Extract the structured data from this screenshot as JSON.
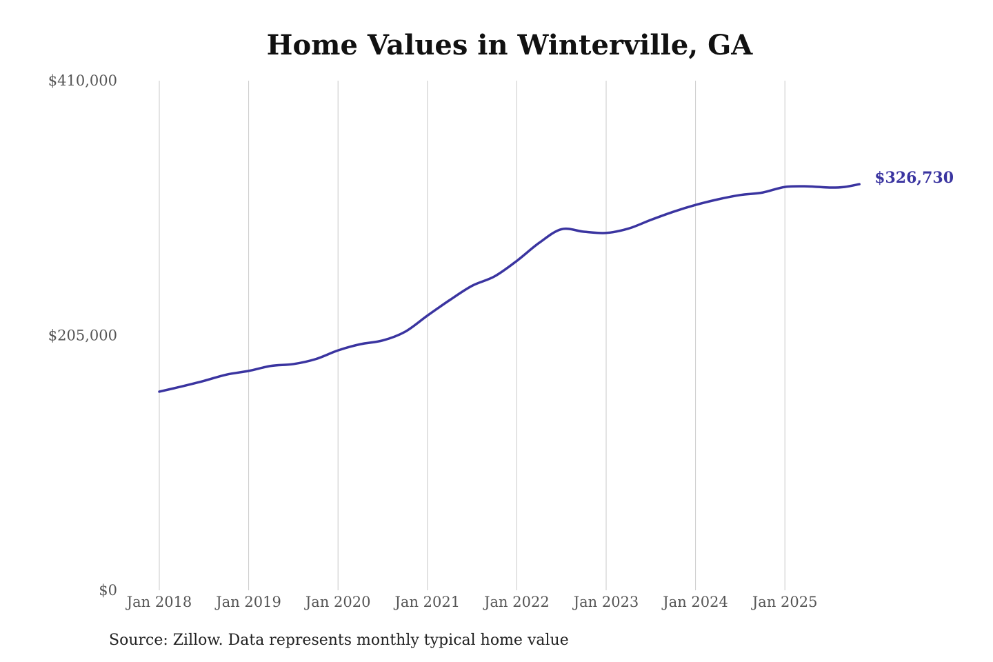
{
  "chart_data": {
    "type": "line",
    "title": "Home Values in Winterville, GA",
    "source": "Source: Zillow. Data represents monthly typical home value",
    "xlabel": "",
    "ylabel": "",
    "ylim": [
      0,
      410000
    ],
    "y_ticks": [
      0,
      205000,
      410000
    ],
    "y_tick_labels": [
      "$0",
      "$205,000",
      "$410,000"
    ],
    "x_ticks": [
      "2018-01",
      "2019-01",
      "2020-01",
      "2021-01",
      "2022-01",
      "2023-01",
      "2024-01",
      "2025-01"
    ],
    "x_tick_labels": [
      "Jan 2018",
      "Jan 2019",
      "Jan 2020",
      "Jan 2021",
      "Jan 2022",
      "Jan 2023",
      "Jan 2024",
      "Jan 2025"
    ],
    "grid": "vertical",
    "line_color": "#3a34a0",
    "end_label": "$326,730",
    "points": [
      [
        "2018-01",
        159800
      ],
      [
        "2018-04",
        164000
      ],
      [
        "2018-07",
        168500
      ],
      [
        "2018-10",
        173500
      ],
      [
        "2019-01",
        176500
      ],
      [
        "2019-04",
        180500
      ],
      [
        "2019-07",
        182000
      ],
      [
        "2019-10",
        186000
      ],
      [
        "2020-01",
        193000
      ],
      [
        "2020-04",
        198000
      ],
      [
        "2020-07",
        201000
      ],
      [
        "2020-10",
        208000
      ],
      [
        "2021-01",
        221000
      ],
      [
        "2021-04",
        233500
      ],
      [
        "2021-07",
        245000
      ],
      [
        "2021-10",
        252500
      ],
      [
        "2022-01",
        265000
      ],
      [
        "2022-04",
        279500
      ],
      [
        "2022-07",
        290500
      ],
      [
        "2022-10",
        288500
      ],
      [
        "2023-01",
        287500
      ],
      [
        "2023-04",
        291000
      ],
      [
        "2023-07",
        298000
      ],
      [
        "2023-10",
        304500
      ],
      [
        "2024-01",
        310000
      ],
      [
        "2024-04",
        314500
      ],
      [
        "2024-07",
        318000
      ],
      [
        "2024-10",
        320000
      ],
      [
        "2025-01",
        324500
      ],
      [
        "2025-04",
        325000
      ],
      [
        "2025-07",
        324000
      ],
      [
        "2025-09",
        324500
      ],
      [
        "2025-11",
        326730
      ]
    ]
  }
}
